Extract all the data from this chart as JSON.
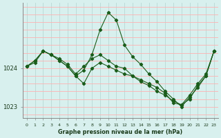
{
  "title": "Graphe pression niveau de la mer (hPa)",
  "background_color": "#d8f0ee",
  "grid_color_v": "#b8d8d4",
  "grid_color_h": "#ffb0b0",
  "line_color": "#1a5c1a",
  "xlim": [
    -0.5,
    23.5
  ],
  "ylim": [
    1022.7,
    1025.7
  ],
  "yticks": [
    1023,
    1024
  ],
  "xtick_labels": [
    "0",
    "1",
    "2",
    "3",
    "4",
    "5",
    "6",
    "7",
    "8",
    "9",
    "10",
    "11",
    "12",
    "13",
    "14",
    "15",
    "16",
    "17",
    "18",
    "19",
    "20",
    "21",
    "22",
    "23"
  ],
  "xtick_positions": [
    0,
    1,
    2,
    3,
    4,
    5,
    6,
    7,
    8,
    9,
    10,
    11,
    12,
    13,
    14,
    15,
    16,
    17,
    18,
    19,
    20,
    21,
    22,
    23
  ],
  "series": [
    {
      "x": [
        0,
        1,
        2,
        3,
        4,
        5,
        6,
        7,
        8,
        9,
        10,
        11,
        12,
        13,
        14,
        15,
        16,
        17,
        18,
        19,
        20,
        21,
        22,
        23
      ],
      "y": [
        1024.05,
        1024.15,
        1024.45,
        1024.35,
        1024.25,
        1024.1,
        1023.85,
        1024.05,
        1024.25,
        1024.35,
        1024.2,
        1024.05,
        1024.0,
        1023.8,
        1023.65,
        1023.55,
        1023.4,
        1023.3,
        1023.15,
        1023.05,
        1023.3,
        1023.6,
        1023.85,
        1024.45
      ]
    },
    {
      "x": [
        0,
        1,
        2,
        3,
        4,
        5,
        6,
        7,
        8,
        9,
        10,
        11,
        12,
        13,
        14,
        15,
        16,
        17,
        18,
        19,
        20,
        21,
        22,
        23
      ],
      "y": [
        1024.05,
        1024.2,
        1024.45,
        1024.35,
        1024.2,
        1024.05,
        1023.8,
        1023.95,
        1024.35,
        1025.0,
        1025.45,
        1025.25,
        1024.6,
        1024.3,
        1024.1,
        1023.85,
        1023.65,
        1023.4,
        1023.2,
        1023.0,
        1023.25,
        1023.5,
        1023.8,
        1024.45
      ]
    },
    {
      "x": [
        0,
        1,
        2,
        3,
        4,
        5,
        6,
        7,
        8,
        9,
        10,
        11,
        12,
        13,
        14,
        15,
        16,
        17,
        18,
        19,
        20,
        21,
        22,
        23
      ],
      "y": [
        1024.05,
        1024.2,
        1024.45,
        1024.35,
        1024.2,
        1024.05,
        1023.8,
        1023.6,
        1024.0,
        1024.15,
        1024.05,
        1023.95,
        1023.85,
        1023.8,
        1023.7,
        1023.6,
        1023.5,
        1023.35,
        1023.1,
        1023.05,
        1023.2,
        1023.55,
        1023.8,
        1024.45
      ]
    }
  ]
}
